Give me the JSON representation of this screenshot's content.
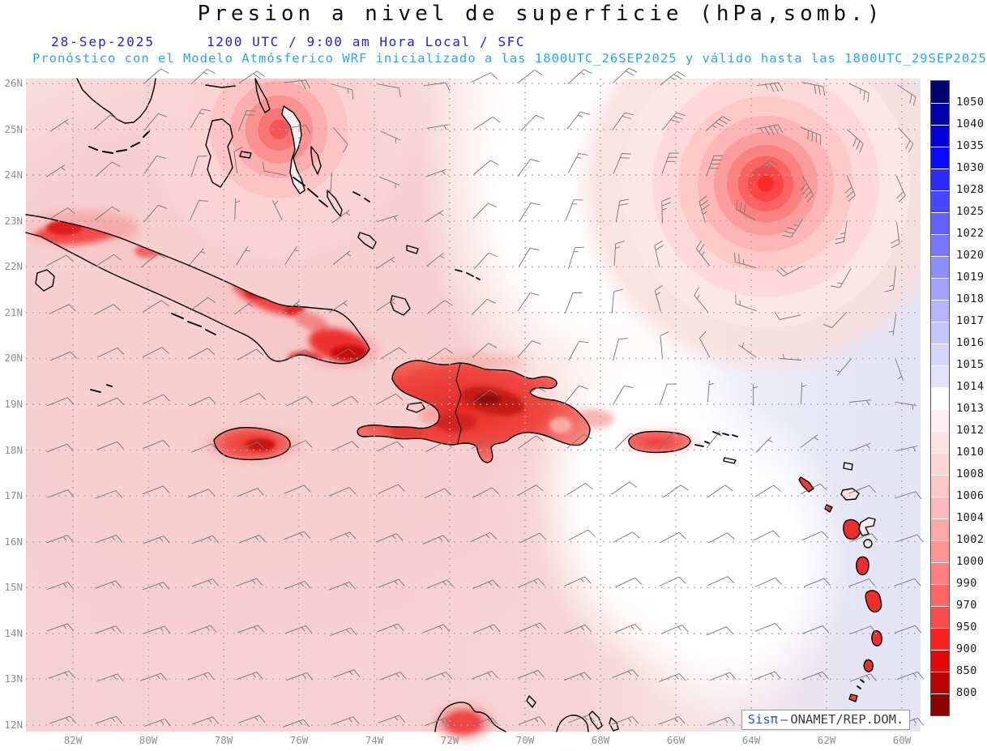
{
  "header": {
    "title": "Presion a nivel de superficie (hPa,somb.)",
    "date": "28-Sep-2025",
    "time_line": "1200 UTC / 9:00 am Hora Local / SFC",
    "forecast_line": "Pronóstico con el Modelo Atmósferico WRF inicializado a las 1800UTC_26SEP2025 y válido hasta las  1800UTC_29SEP2025"
  },
  "map": {
    "lat_labels": [
      "26N",
      "25N",
      "24N",
      "23N",
      "22N",
      "21N",
      "20N",
      "19N",
      "18N",
      "17N",
      "16N",
      "15N",
      "14N",
      "13N",
      "12N"
    ],
    "lon_labels": [
      "82W",
      "80W",
      "78W",
      "76W",
      "74W",
      "72W",
      "70W",
      "68W",
      "66W",
      "64W",
      "62W",
      "60W"
    ],
    "extent": {
      "west": "83.25W",
      "east": "59.5W",
      "south": "11.9N",
      "north": "26.1N"
    },
    "pressure_systems": [
      {
        "id": "tropical-cyclone-atlantic",
        "type": "low",
        "lon_w": 63.6,
        "lat_n": 23.7,
        "relative_strength": "strong"
      },
      {
        "id": "low-near-bahamas",
        "type": "low",
        "lon_w": 76.5,
        "lat_n": 24.9,
        "relative_strength": "moderate"
      }
    ],
    "wind_field": {
      "background": "E-ENE trade winds 10-15 kt",
      "around_lows": "cyclonic circulation up to ~45 kt near the Atlantic cyclone"
    },
    "shading_legend": "surface pressure shaded, hPa; red = low, blue = high"
  },
  "colorbar": {
    "unit": "hPa",
    "labels": [
      "1050",
      "1040",
      "1035",
      "1030",
      "1028",
      "1025",
      "1022",
      "1020",
      "1019",
      "1018",
      "1017",
      "1016",
      "1015",
      "1014",
      "1013",
      "1012",
      "1010",
      "1008",
      "1006",
      "1004",
      "1002",
      "1000",
      "990",
      "970",
      "950",
      "900",
      "850",
      "800"
    ],
    "colors": [
      "#020272",
      "#0101b0",
      "#0303d9",
      "#0a0afe",
      "#2b2bfe",
      "#4747fe",
      "#6161fe",
      "#7878fe",
      "#8e8efe",
      "#a3a3fe",
      "#b5b5fe",
      "#c6c6fe",
      "#d5d5fe",
      "#e2e2fd",
      "#ffffff",
      "#fef0f0",
      "#fee3e3",
      "#fed5d5",
      "#fec8c8",
      "#febaba",
      "#fea9a9",
      "#fe9595",
      "#fe7f7f",
      "#fe6666",
      "#fd4b4b",
      "#fb2222",
      "#e30909",
      "#bc0404",
      "#8c0101"
    ]
  },
  "watermark": {
    "brand": "Sisπ",
    "sep": "–",
    "org": "ONAMET/REP.DOM."
  },
  "colors": {
    "title": "#101010",
    "date_blue": "#2222d8",
    "forecast_cyan": "#2da4ee",
    "axis_gray": "#8f8f8f",
    "barb_gray": "#757575",
    "coast_black": "#000000",
    "brand_blue": "#2a52f0",
    "sea_pink_west": "#f7d3d3",
    "sea_lavender_east": "#e4e4f5"
  }
}
